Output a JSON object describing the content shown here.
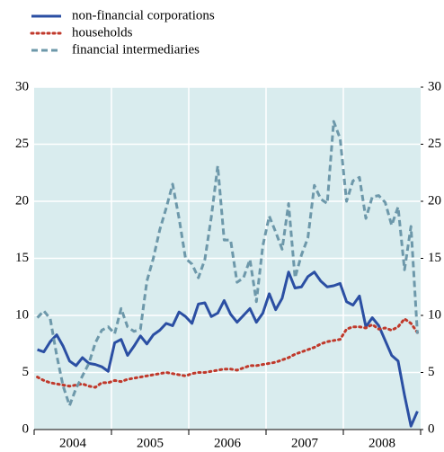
{
  "chart_data": {
    "type": "line",
    "categories": [
      null,
      null,
      null,
      null,
      null,
      null,
      "2004",
      null,
      null,
      null,
      null,
      null,
      null,
      null,
      null,
      null,
      null,
      null,
      "2005",
      null,
      null,
      null,
      null,
      null,
      null,
      null,
      null,
      null,
      null,
      null,
      "2006",
      null,
      null,
      null,
      null,
      null,
      null,
      null,
      null,
      null,
      null,
      null,
      "2007",
      null,
      null,
      null,
      null,
      null,
      null,
      null,
      null,
      null,
      null,
      null,
      "2008",
      null,
      null,
      null,
      null,
      null
    ],
    "series": [
      {
        "name": "non-financial corporations",
        "color": "#2b4fa3",
        "style": "solid",
        "values": [
          7.0,
          6.8,
          7.7,
          8.3,
          7.3,
          6.0,
          5.6,
          6.3,
          5.8,
          5.7,
          5.5,
          5.1,
          7.6,
          7.9,
          6.5,
          7.3,
          8.2,
          7.5,
          8.3,
          8.7,
          9.3,
          9.1,
          10.3,
          9.9,
          9.3,
          11.0,
          11.1,
          9.9,
          10.2,
          11.3,
          10.1,
          9.4,
          10.0,
          10.6,
          9.4,
          10.2,
          11.9,
          10.5,
          11.5,
          13.8,
          12.4,
          12.5,
          13.4,
          13.8,
          13.0,
          12.5,
          12.6,
          12.8,
          11.2,
          10.9,
          11.7,
          9.0,
          9.8,
          9.1,
          7.8,
          6.5,
          6.0,
          3.0,
          0.3,
          1.6
        ]
      },
      {
        "name": "households",
        "color": "#c0392b",
        "style": "dotted",
        "values": [
          4.6,
          4.3,
          4.1,
          4.0,
          3.9,
          3.8,
          3.9,
          4.0,
          3.8,
          3.7,
          4.1,
          4.1,
          4.3,
          4.2,
          4.4,
          4.5,
          4.6,
          4.7,
          4.8,
          4.9,
          5.0,
          4.9,
          4.8,
          4.7,
          4.9,
          5.0,
          5.0,
          5.1,
          5.2,
          5.3,
          5.3,
          5.2,
          5.4,
          5.6,
          5.6,
          5.7,
          5.8,
          5.9,
          6.1,
          6.3,
          6.6,
          6.8,
          7.0,
          7.2,
          7.5,
          7.7,
          7.8,
          7.9,
          8.8,
          9.0,
          9.0,
          8.9,
          9.2,
          8.8,
          8.9,
          8.7,
          9.0,
          9.7,
          9.3,
          8.5
        ]
      },
      {
        "name": "financial intermediaries",
        "color": "#6d98aa",
        "style": "dashed",
        "values": [
          9.8,
          10.4,
          9.7,
          6.5,
          3.8,
          2.1,
          3.6,
          4.7,
          5.8,
          7.6,
          8.7,
          9.0,
          8.4,
          10.6,
          9.0,
          8.6,
          8.8,
          13.0,
          15.0,
          17.5,
          19.4,
          21.5,
          18.5,
          15.0,
          14.5,
          13.3,
          14.9,
          18.6,
          23.1,
          16.6,
          16.6,
          12.9,
          13.3,
          14.9,
          11.2,
          16.1,
          18.7,
          17.3,
          15.8,
          19.8,
          13.3,
          15.3,
          16.8,
          21.4,
          20.2,
          19.8,
          27.0,
          25.5,
          20.0,
          21.8,
          22.1,
          18.5,
          20.4,
          20.5,
          19.9,
          17.9,
          19.5,
          14.0,
          17.8,
          8.4
        ]
      }
    ],
    "ylim": [
      0,
      30
    ],
    "yticks": [
      0,
      5,
      10,
      15,
      20,
      25,
      30
    ],
    "y2lim": [
      0,
      30
    ],
    "y2ticks": [
      0,
      5,
      10,
      15,
      20,
      25,
      30
    ],
    "grid": true,
    "legend": "top-left",
    "background": "#d9ecee"
  }
}
